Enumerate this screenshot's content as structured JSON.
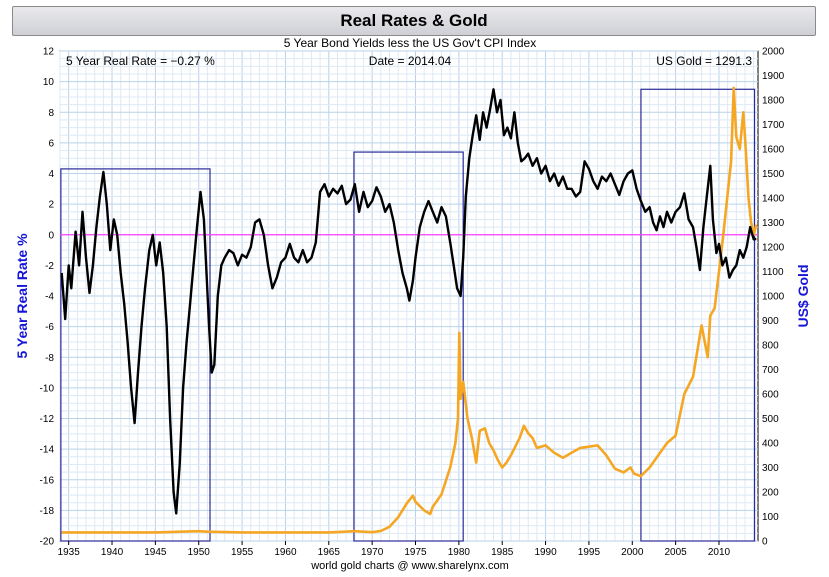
{
  "chart_data": {
    "type": "line",
    "title": "Real Rates & Gold",
    "subtitle": "5 Year Bond Yields less the US Gov't CPI Index",
    "readouts": {
      "real_rate": "5 Year Real Rate = −0.27 %",
      "date": "Date = 2014.04",
      "gold": "US Gold = 1291.3"
    },
    "footer": "world gold charts @ www.sharelynx.com",
    "ylabel_left": "5 Year Real Rate %",
    "ylabel_right": "US$ Gold",
    "xlim": [
      1934,
      2014.5
    ],
    "ylim_left": [
      -20,
      12
    ],
    "ylim_right": [
      0,
      2000
    ],
    "x_ticks": [
      "1935",
      "1940",
      "1945",
      "1950",
      "1955",
      "1960",
      "1965",
      "1970",
      "1975",
      "1980",
      "1985",
      "1990",
      "1995",
      "2000",
      "2005",
      "2010"
    ],
    "y_left_ticks": [
      "-20",
      "-18",
      "-16",
      "-14",
      "-12",
      "-10",
      "-8",
      "-6",
      "-4",
      "-2",
      "0",
      "2",
      "4",
      "6",
      "8",
      "10",
      "12"
    ],
    "y_right_ticks": [
      "0",
      "100",
      "200",
      "300",
      "400",
      "500",
      "600",
      "700",
      "800",
      "900",
      "1000",
      "1100",
      "1200",
      "1300",
      "1400",
      "1500",
      "1600",
      "1700",
      "1800",
      "1900",
      "2000"
    ],
    "zero_line": 0,
    "highlight_boxes": [
      {
        "x0": 1934.1,
        "x1": 1951.3,
        "y0": -20,
        "y1": 4.3
      },
      {
        "x0": 1967.9,
        "x1": 1980.5,
        "y0": -20,
        "y1": 5.4
      },
      {
        "x0": 2001.0,
        "x1": 2014.1,
        "y0": -20,
        "y1": 9.5
      }
    ],
    "series": [
      {
        "name": "5 Year Real Rate",
        "axis": "left",
        "color": "#000000",
        "points": [
          [
            1934.2,
            -2.5
          ],
          [
            1934.6,
            -5.5
          ],
          [
            1935.0,
            -2.0
          ],
          [
            1935.3,
            -3.5
          ],
          [
            1935.8,
            0.2
          ],
          [
            1936.2,
            -2.0
          ],
          [
            1936.6,
            1.5
          ],
          [
            1937.0,
            -1.5
          ],
          [
            1937.4,
            -3.8
          ],
          [
            1937.8,
            -2.0
          ],
          [
            1938.2,
            0.5
          ],
          [
            1938.6,
            2.5
          ],
          [
            1939.0,
            4.1
          ],
          [
            1939.4,
            2.0
          ],
          [
            1939.8,
            -1.0
          ],
          [
            1940.2,
            1.0
          ],
          [
            1940.6,
            0.0
          ],
          [
            1941.0,
            -2.5
          ],
          [
            1941.4,
            -4.5
          ],
          [
            1941.8,
            -7.0
          ],
          [
            1942.2,
            -10.0
          ],
          [
            1942.6,
            -12.3
          ],
          [
            1943.0,
            -9.0
          ],
          [
            1943.4,
            -6.0
          ],
          [
            1943.8,
            -3.5
          ],
          [
            1944.3,
            -1.0
          ],
          [
            1944.7,
            0.0
          ],
          [
            1945.1,
            -2.0
          ],
          [
            1945.5,
            -0.5
          ],
          [
            1945.9,
            -2.5
          ],
          [
            1946.3,
            -6.0
          ],
          [
            1946.7,
            -12.0
          ],
          [
            1947.1,
            -16.8
          ],
          [
            1947.4,
            -18.2
          ],
          [
            1947.8,
            -15.0
          ],
          [
            1948.2,
            -10.0
          ],
          [
            1948.6,
            -7.0
          ],
          [
            1949.0,
            -4.5
          ],
          [
            1949.4,
            -2.0
          ],
          [
            1949.8,
            0.5
          ],
          [
            1950.2,
            2.8
          ],
          [
            1950.6,
            1.0
          ],
          [
            1950.9,
            -2.5
          ],
          [
            1951.2,
            -6.0
          ],
          [
            1951.5,
            -9.0
          ],
          [
            1951.8,
            -8.5
          ],
          [
            1952.2,
            -4.0
          ],
          [
            1952.6,
            -2.0
          ],
          [
            1953.0,
            -1.5
          ],
          [
            1953.5,
            -1.0
          ],
          [
            1954.0,
            -1.2
          ],
          [
            1954.5,
            -2.0
          ],
          [
            1955.0,
            -1.3
          ],
          [
            1955.5,
            -1.5
          ],
          [
            1956.0,
            -0.8
          ],
          [
            1956.5,
            0.8
          ],
          [
            1957.0,
            1.0
          ],
          [
            1957.5,
            0.0
          ],
          [
            1958.0,
            -2.0
          ],
          [
            1958.5,
            -3.5
          ],
          [
            1959.0,
            -2.8
          ],
          [
            1959.5,
            -1.8
          ],
          [
            1960.0,
            -1.5
          ],
          [
            1960.5,
            -0.6
          ],
          [
            1961.0,
            -1.5
          ],
          [
            1961.5,
            -1.8
          ],
          [
            1962.0,
            -1.0
          ],
          [
            1962.5,
            -1.8
          ],
          [
            1963.0,
            -1.5
          ],
          [
            1963.5,
            -0.5
          ],
          [
            1964.0,
            2.8
          ],
          [
            1964.5,
            3.3
          ],
          [
            1965.0,
            2.5
          ],
          [
            1965.5,
            3.0
          ],
          [
            1966.0,
            2.7
          ],
          [
            1966.5,
            3.2
          ],
          [
            1967.0,
            2.0
          ],
          [
            1967.5,
            2.3
          ],
          [
            1968.0,
            3.3
          ],
          [
            1968.5,
            1.5
          ],
          [
            1969.0,
            2.8
          ],
          [
            1969.5,
            1.8
          ],
          [
            1970.0,
            2.2
          ],
          [
            1970.5,
            3.1
          ],
          [
            1971.0,
            2.5
          ],
          [
            1971.5,
            1.5
          ],
          [
            1972.0,
            2.0
          ],
          [
            1972.5,
            0.8
          ],
          [
            1973.0,
            -1.0
          ],
          [
            1973.5,
            -2.5
          ],
          [
            1974.0,
            -3.5
          ],
          [
            1974.3,
            -4.3
          ],
          [
            1974.7,
            -3.0
          ],
          [
            1975.0,
            -1.5
          ],
          [
            1975.5,
            0.5
          ],
          [
            1976.0,
            1.5
          ],
          [
            1976.5,
            2.2
          ],
          [
            1977.0,
            1.5
          ],
          [
            1977.5,
            0.8
          ],
          [
            1978.0,
            1.8
          ],
          [
            1978.5,
            1.2
          ],
          [
            1979.0,
            -0.5
          ],
          [
            1979.4,
            -2.0
          ],
          [
            1979.8,
            -3.5
          ],
          [
            1980.2,
            -4.0
          ],
          [
            1980.5,
            -1.5
          ],
          [
            1980.8,
            2.5
          ],
          [
            1981.2,
            5.0
          ],
          [
            1981.6,
            6.5
          ],
          [
            1982.0,
            7.8
          ],
          [
            1982.4,
            6.2
          ],
          [
            1982.8,
            8.0
          ],
          [
            1983.2,
            7.0
          ],
          [
            1983.6,
            8.2
          ],
          [
            1984.0,
            9.5
          ],
          [
            1984.4,
            8.0
          ],
          [
            1984.8,
            8.8
          ],
          [
            1985.2,
            6.5
          ],
          [
            1985.6,
            7.0
          ],
          [
            1986.0,
            6.3
          ],
          [
            1986.4,
            8.0
          ],
          [
            1986.8,
            6.0
          ],
          [
            1987.2,
            4.8
          ],
          [
            1987.6,
            5.0
          ],
          [
            1988.0,
            5.3
          ],
          [
            1988.5,
            4.5
          ],
          [
            1989.0,
            5.0
          ],
          [
            1989.5,
            4.0
          ],
          [
            1990.0,
            4.5
          ],
          [
            1990.5,
            3.5
          ],
          [
            1991.0,
            4.0
          ],
          [
            1991.5,
            3.2
          ],
          [
            1992.0,
            3.8
          ],
          [
            1992.5,
            3.0
          ],
          [
            1993.0,
            3.0
          ],
          [
            1993.5,
            2.5
          ],
          [
            1994.0,
            2.8
          ],
          [
            1994.5,
            4.8
          ],
          [
            1995.0,
            4.3
          ],
          [
            1995.5,
            3.5
          ],
          [
            1996.0,
            3.0
          ],
          [
            1996.5,
            3.8
          ],
          [
            1997.0,
            3.5
          ],
          [
            1997.5,
            4.0
          ],
          [
            1998.0,
            3.3
          ],
          [
            1998.5,
            2.6
          ],
          [
            1999.0,
            3.5
          ],
          [
            1999.5,
            4.0
          ],
          [
            2000.0,
            4.2
          ],
          [
            2000.5,
            3.0
          ],
          [
            2001.0,
            2.2
          ],
          [
            2001.5,
            1.5
          ],
          [
            2002.0,
            1.8
          ],
          [
            2002.4,
            0.8
          ],
          [
            2002.8,
            0.3
          ],
          [
            2003.2,
            1.2
          ],
          [
            2003.6,
            0.5
          ],
          [
            2004.0,
            1.5
          ],
          [
            2004.5,
            0.8
          ],
          [
            2005.0,
            1.5
          ],
          [
            2005.5,
            1.8
          ],
          [
            2006.0,
            2.7
          ],
          [
            2006.5,
            1.0
          ],
          [
            2007.0,
            0.5
          ],
          [
            2007.4,
            -0.8
          ],
          [
            2007.8,
            -2.3
          ],
          [
            2008.2,
            0.5
          ],
          [
            2008.6,
            2.5
          ],
          [
            2009.0,
            4.5
          ],
          [
            2009.3,
            1.0
          ],
          [
            2009.7,
            -1.2
          ],
          [
            2010.0,
            -0.6
          ],
          [
            2010.4,
            -2.0
          ],
          [
            2010.8,
            -1.5
          ],
          [
            2011.2,
            -2.8
          ],
          [
            2011.6,
            -2.3
          ],
          [
            2012.0,
            -2.0
          ],
          [
            2012.4,
            -1.0
          ],
          [
            2012.8,
            -1.5
          ],
          [
            2013.2,
            -0.8
          ],
          [
            2013.6,
            0.5
          ],
          [
            2014.0,
            -0.3
          ],
          [
            2014.3,
            -0.27
          ]
        ]
      },
      {
        "name": "US Gold",
        "axis": "right",
        "color": "#F5A623",
        "points": [
          [
            1934.2,
            35
          ],
          [
            1940.0,
            35
          ],
          [
            1945.0,
            35
          ],
          [
            1948.0,
            38
          ],
          [
            1950.0,
            40
          ],
          [
            1951.0,
            38
          ],
          [
            1955.0,
            35
          ],
          [
            1960.0,
            35
          ],
          [
            1965.0,
            35
          ],
          [
            1968.0,
            40
          ],
          [
            1970.0,
            36
          ],
          [
            1971.0,
            41
          ],
          [
            1972.0,
            58
          ],
          [
            1973.0,
            97
          ],
          [
            1974.0,
            154
          ],
          [
            1974.7,
            185
          ],
          [
            1975.0,
            160
          ],
          [
            1976.0,
            125
          ],
          [
            1976.7,
            110
          ],
          [
            1977.0,
            140
          ],
          [
            1978.0,
            190
          ],
          [
            1979.0,
            300
          ],
          [
            1979.6,
            400
          ],
          [
            1979.9,
            500
          ],
          [
            1980.05,
            850
          ],
          [
            1980.2,
            580
          ],
          [
            1980.5,
            650
          ],
          [
            1981.0,
            500
          ],
          [
            1981.5,
            420
          ],
          [
            1982.0,
            320
          ],
          [
            1982.4,
            450
          ],
          [
            1983.0,
            460
          ],
          [
            1983.5,
            400
          ],
          [
            1984.0,
            370
          ],
          [
            1984.5,
            330
          ],
          [
            1985.0,
            300
          ],
          [
            1985.5,
            320
          ],
          [
            1986.0,
            350
          ],
          [
            1987.0,
            420
          ],
          [
            1987.5,
            470
          ],
          [
            1988.0,
            440
          ],
          [
            1988.5,
            420
          ],
          [
            1989.0,
            380
          ],
          [
            1990.0,
            390
          ],
          [
            1991.0,
            360
          ],
          [
            1992.0,
            340
          ],
          [
            1993.0,
            360
          ],
          [
            1994.0,
            380
          ],
          [
            1995.0,
            385
          ],
          [
            1996.0,
            390
          ],
          [
            1997.0,
            350
          ],
          [
            1998.0,
            295
          ],
          [
            1999.0,
            280
          ],
          [
            1999.8,
            300
          ],
          [
            2000.2,
            275
          ],
          [
            2001.0,
            265
          ],
          [
            2002.0,
            300
          ],
          [
            2003.0,
            350
          ],
          [
            2004.0,
            400
          ],
          [
            2005.0,
            430
          ],
          [
            2006.0,
            600
          ],
          [
            2007.0,
            670
          ],
          [
            2008.0,
            880
          ],
          [
            2008.7,
            750
          ],
          [
            2009.0,
            920
          ],
          [
            2009.5,
            950
          ],
          [
            2010.0,
            1100
          ],
          [
            2010.5,
            1250
          ],
          [
            2011.0,
            1420
          ],
          [
            2011.4,
            1550
          ],
          [
            2011.7,
            1850
          ],
          [
            2012.0,
            1650
          ],
          [
            2012.4,
            1600
          ],
          [
            2012.8,
            1750
          ],
          [
            2013.0,
            1650
          ],
          [
            2013.4,
            1400
          ],
          [
            2013.7,
            1300
          ],
          [
            2014.0,
            1250
          ],
          [
            2014.3,
            1291
          ]
        ]
      }
    ]
  }
}
